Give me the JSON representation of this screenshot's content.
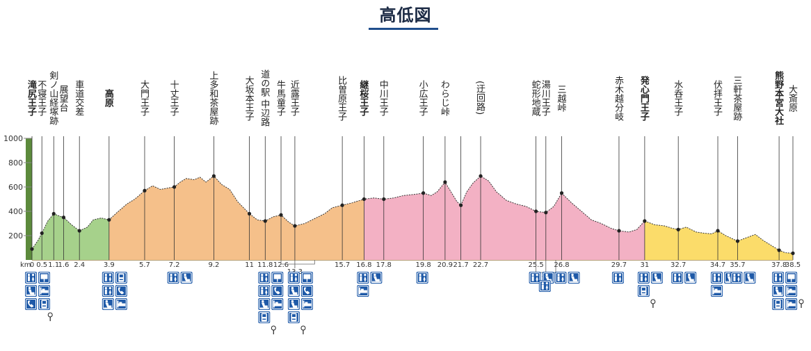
{
  "title": "高低図",
  "chart_data": {
    "type": "area",
    "x_unit": "km",
    "ylim": [
      0,
      1000
    ],
    "yticks": [
      200,
      400,
      600,
      800,
      1000
    ],
    "segment_colors": [
      {
        "from": 0,
        "to": 3.9,
        "color": "#a6d18b"
      },
      {
        "from": 3.9,
        "to": 16.8,
        "color": "#f5c08a"
      },
      {
        "from": 16.8,
        "to": 31,
        "color": "#f3b1c4"
      },
      {
        "from": 31,
        "to": 38.5,
        "color": "#fbdc6a"
      }
    ],
    "elevation_bar_color": "#5c8a3c",
    "profile": [
      [
        0,
        90
      ],
      [
        0.3,
        160
      ],
      [
        0.5,
        220
      ],
      [
        0.8,
        320
      ],
      [
        1.1,
        380
      ],
      [
        1.4,
        360
      ],
      [
        1.6,
        350
      ],
      [
        2.0,
        290
      ],
      [
        2.4,
        240
      ],
      [
        2.8,
        270
      ],
      [
        3.1,
        330
      ],
      [
        3.5,
        345
      ],
      [
        3.9,
        330
      ],
      [
        4.3,
        390
      ],
      [
        4.8,
        460
      ],
      [
        5.2,
        500
      ],
      [
        5.7,
        570
      ],
      [
        6.1,
        610
      ],
      [
        6.5,
        580
      ],
      [
        7.0,
        595
      ],
      [
        7.2,
        600
      ],
      [
        7.5,
        640
      ],
      [
        7.8,
        670
      ],
      [
        8.2,
        660
      ],
      [
        8.5,
        680
      ],
      [
        8.8,
        640
      ],
      [
        9.2,
        690
      ],
      [
        9.6,
        620
      ],
      [
        10.0,
        580
      ],
      [
        10.4,
        480
      ],
      [
        11.0,
        380
      ],
      [
        11.4,
        330
      ],
      [
        11.8,
        320
      ],
      [
        12.2,
        355
      ],
      [
        12.6,
        370
      ],
      [
        13.0,
        310
      ],
      [
        13.3,
        280
      ],
      [
        13.8,
        300
      ],
      [
        14.3,
        340
      ],
      [
        14.8,
        380
      ],
      [
        15.2,
        430
      ],
      [
        15.7,
        450
      ],
      [
        16.2,
        470
      ],
      [
        16.8,
        500
      ],
      [
        17.3,
        510
      ],
      [
        17.8,
        500
      ],
      [
        18.3,
        510
      ],
      [
        18.8,
        530
      ],
      [
        19.4,
        540
      ],
      [
        19.8,
        550
      ],
      [
        20.2,
        530
      ],
      [
        20.5,
        560
      ],
      [
        20.9,
        640
      ],
      [
        21.2,
        560
      ],
      [
        21.5,
        480
      ],
      [
        21.7,
        450
      ],
      [
        22.0,
        560
      ],
      [
        22.3,
        630
      ],
      [
        22.7,
        690
      ],
      [
        23.1,
        650
      ],
      [
        23.5,
        560
      ],
      [
        24.0,
        490
      ],
      [
        24.5,
        460
      ],
      [
        25.0,
        440
      ],
      [
        25.5,
        400
      ],
      [
        26.0,
        390
      ],
      [
        26.4,
        440
      ],
      [
        26.8,
        550
      ],
      [
        27.3,
        470
      ],
      [
        27.8,
        400
      ],
      [
        28.3,
        330
      ],
      [
        28.8,
        300
      ],
      [
        29.3,
        260
      ],
      [
        29.7,
        240
      ],
      [
        30.2,
        230
      ],
      [
        30.6,
        250
      ],
      [
        31,
        320
      ],
      [
        31.5,
        290
      ],
      [
        32.0,
        280
      ],
      [
        32.4,
        260
      ],
      [
        32.7,
        250
      ],
      [
        33.1,
        270
      ],
      [
        33.6,
        230
      ],
      [
        34.0,
        220
      ],
      [
        34.4,
        215
      ],
      [
        34.7,
        240
      ],
      [
        35.1,
        200
      ],
      [
        35.7,
        155
      ],
      [
        36.1,
        180
      ],
      [
        36.6,
        210
      ],
      [
        37.0,
        160
      ],
      [
        37.4,
        120
      ],
      [
        37.8,
        80
      ],
      [
        38.1,
        60
      ],
      [
        38.5,
        55
      ]
    ],
    "point_elevations": [
      [
        0,
        90
      ],
      [
        0.5,
        220
      ],
      [
        1.1,
        380
      ],
      [
        1.6,
        350
      ],
      [
        2.4,
        240
      ],
      [
        3.9,
        330
      ],
      [
        5.7,
        570
      ],
      [
        7.2,
        600
      ],
      [
        9.2,
        690
      ],
      [
        11,
        380
      ],
      [
        11.8,
        320
      ],
      [
        12.6,
        370
      ],
      [
        13.3,
        280
      ],
      [
        15.7,
        450
      ],
      [
        16.8,
        500
      ],
      [
        17.8,
        500
      ],
      [
        19.8,
        550
      ],
      [
        20.9,
        640
      ],
      [
        21.7,
        450
      ],
      [
        22.7,
        690
      ],
      [
        25.5,
        400
      ],
      [
        26,
        390
      ],
      [
        26.8,
        550
      ],
      [
        29.7,
        240
      ],
      [
        31,
        320
      ],
      [
        32.7,
        250
      ],
      [
        34.7,
        240
      ],
      [
        35.7,
        155
      ],
      [
        37.8,
        80
      ],
      [
        38.5,
        55
      ]
    ],
    "km_labels": [
      {
        "km": 0,
        "label": "0"
      },
      {
        "km": 0.5,
        "label": "0.5"
      },
      {
        "km": 1.1,
        "label": "1.1"
      },
      {
        "km": 1.6,
        "label": "1.6"
      },
      {
        "km": 2.4,
        "label": "2.4"
      },
      {
        "km": 3.9,
        "label": "3.9"
      },
      {
        "km": 5.7,
        "label": "5.7"
      },
      {
        "km": 7.2,
        "label": "7.2"
      },
      {
        "km": 9.2,
        "label": "9.2"
      },
      {
        "km": 11,
        "label": "11"
      },
      {
        "km": 11.8,
        "label": "11.8"
      },
      {
        "km": 12.6,
        "label": "12.6"
      },
      {
        "km": 13.3,
        "label": "13.3",
        "row": 1
      },
      {
        "km": 15.7,
        "label": "15.7"
      },
      {
        "km": 16.8,
        "label": "16.8"
      },
      {
        "km": 17.8,
        "label": "17.8"
      },
      {
        "km": 19.8,
        "label": "19.8"
      },
      {
        "km": 20.9,
        "label": "20.9"
      },
      {
        "km": 21.7,
        "label": "21.7"
      },
      {
        "km": 22.7,
        "label": "22.7"
      },
      {
        "km": 25.5,
        "label": "25.5"
      },
      {
        "km": 26,
        "label": "26",
        "row": 2
      },
      {
        "km": 26.8,
        "label": "26.8"
      },
      {
        "km": 29.7,
        "label": "29.7"
      },
      {
        "km": 31,
        "label": "31"
      },
      {
        "km": 32.7,
        "label": "32.7"
      },
      {
        "km": 34.7,
        "label": "34.7"
      },
      {
        "km": 35.7,
        "label": "35.7"
      },
      {
        "km": 37.8,
        "label": "37.8"
      },
      {
        "km": 38.5,
        "label": "38.5"
      }
    ],
    "places": [
      {
        "km": 0,
        "name": "滝尻王子",
        "bold": true
      },
      {
        "km": 0.5,
        "name": "不寝王子"
      },
      {
        "km": 1.1,
        "name": "剣ノ山経塚跡"
      },
      {
        "km": 1.6,
        "name": "展望台"
      },
      {
        "km": 2.4,
        "name": "車道交差"
      },
      {
        "km": 3.9,
        "name": "高原",
        "bold": true
      },
      {
        "km": 5.7,
        "name": "大門王子"
      },
      {
        "km": 7.2,
        "name": "十丈王子"
      },
      {
        "km": 9.2,
        "name": "上多和茶屋跡"
      },
      {
        "km": 11,
        "name": "大坂本王子"
      },
      {
        "km": 11.8,
        "name": "道の駅 中辺路"
      },
      {
        "km": 12.6,
        "name": "牛馬童子"
      },
      {
        "km": 13.3,
        "name": "近露王子"
      },
      {
        "km": 15.7,
        "name": "比曽原王子"
      },
      {
        "km": 16.8,
        "name": "継桜王子",
        "bold": true
      },
      {
        "km": 17.8,
        "name": "中川王子"
      },
      {
        "km": 19.8,
        "name": "小広王子"
      },
      {
        "km": 20.9,
        "name": "わらじ峠"
      },
      {
        "km": 22.7,
        "name": "(迂回路)"
      },
      {
        "km": 25.5,
        "name": "蛇形地蔵"
      },
      {
        "km": 26,
        "name": "湯川王子"
      },
      {
        "km": 26.8,
        "name": "三越峠"
      },
      {
        "km": 29.7,
        "name": "赤木越分岐"
      },
      {
        "km": 31,
        "name": "発心門王子",
        "bold": true
      },
      {
        "km": 32.7,
        "name": "水呑王子"
      },
      {
        "km": 34.7,
        "name": "伏拝王子"
      },
      {
        "km": 35.7,
        "name": "三軒茶屋跡"
      },
      {
        "km": 37.8,
        "name": "熊野本宮大社",
        "bold": true
      },
      {
        "km": 38.5,
        "name": "大斎原"
      }
    ],
    "facility_groups": [
      {
        "km": 0,
        "icons": [
          "toilet",
          "info",
          "bench",
          "hotel",
          "phone",
          "vending"
        ]
      },
      {
        "km": 3.9,
        "icons": [
          "toilet",
          "vending",
          "toilet",
          "phone",
          "bench",
          "hotel"
        ]
      },
      {
        "km": 7.2,
        "icons": [
          "toilet",
          "bench"
        ]
      },
      {
        "km": 11.8,
        "icons": [
          "toilet",
          "info",
          "toilet",
          "phone",
          "bench",
          "hotel",
          "vending"
        ]
      },
      {
        "km": 13.3,
        "icons": [
          "toilet",
          "info",
          "bench",
          "phone",
          "bench",
          "hotel",
          "vending"
        ]
      },
      {
        "km": 16.8,
        "icons": [
          "toilet",
          "bench",
          "hotel"
        ]
      },
      {
        "km": 19.8,
        "icons": [
          "toilet"
        ]
      },
      {
        "km": 25.5,
        "icons": [
          "toilet",
          "bench"
        ]
      },
      {
        "km": 26,
        "icons": [
          "toilet"
        ],
        "row": 1
      },
      {
        "km": 26.8,
        "icons": [
          "toilet",
          "bench"
        ]
      },
      {
        "km": 29.7,
        "icons": [
          "toilet"
        ]
      },
      {
        "km": 31,
        "icons": [
          "toilet",
          "bench",
          "vending"
        ]
      },
      {
        "km": 32.7,
        "icons": [
          "toilet",
          "bench"
        ]
      },
      {
        "km": 34.7,
        "icons": [
          "toilet",
          "bench",
          "hotel"
        ]
      },
      {
        "km": 35.7,
        "icons": [
          "toilet",
          "bench"
        ]
      },
      {
        "km": 37.8,
        "icons": [
          "toilet",
          "info",
          "bench",
          "hotel",
          "vending",
          "hotel"
        ]
      }
    ],
    "phone_marks_km": [
      0.5,
      11.8,
      13.3,
      31,
      38.5
    ]
  }
}
